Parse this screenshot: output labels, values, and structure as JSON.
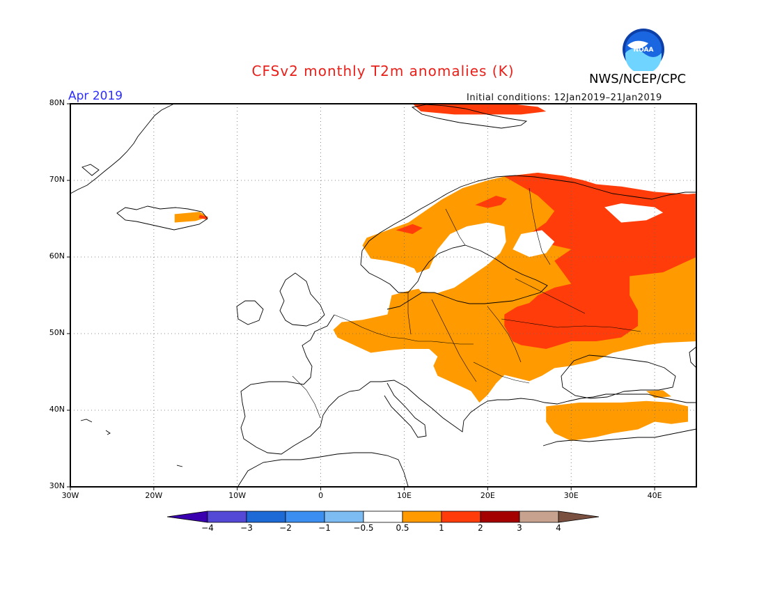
{
  "header": {
    "title": "CFSv2 monthly T2m anomalies (K)",
    "org": "NWS/NCEP/CPC",
    "logo_text": "NOAA",
    "month": "Apr 2019",
    "initial_conditions": "Initial conditions: 12Jan2019–21Jan2019"
  },
  "map": {
    "lon_range": [
      -30,
      45
    ],
    "lat_range": [
      30,
      80
    ],
    "lat_ticks": [
      {
        "value": 80,
        "label": "80N"
      },
      {
        "value": 70,
        "label": "70N"
      },
      {
        "value": 60,
        "label": "60N"
      },
      {
        "value": 50,
        "label": "50N"
      },
      {
        "value": 40,
        "label": "40N"
      },
      {
        "value": 30,
        "label": "30N"
      }
    ],
    "lon_ticks": [
      {
        "value": -30,
        "label": "30W"
      },
      {
        "value": -20,
        "label": "20W"
      },
      {
        "value": -10,
        "label": "10W"
      },
      {
        "value": 0,
        "label": "0"
      },
      {
        "value": 10,
        "label": "10E"
      },
      {
        "value": 20,
        "label": "20E"
      },
      {
        "value": 30,
        "label": "30E"
      },
      {
        "value": 40,
        "label": "40E"
      }
    ],
    "gridlines": true,
    "coastline_color": "#000000",
    "anomaly_regions": [
      {
        "level": "1-2",
        "color": "#ff3c0a",
        "lonlat": [
          [
            11,
            80
          ],
          [
            14,
            80.2
          ],
          [
            18,
            80.3
          ],
          [
            22,
            80.1
          ],
          [
            26,
            79.6
          ],
          [
            27,
            79
          ],
          [
            24,
            78.6
          ],
          [
            20,
            78.6
          ],
          [
            16,
            78.6
          ],
          [
            12,
            79
          ]
        ]
      },
      {
        "level": "0.5-1",
        "color": "#ff9a00",
        "lonlat": [
          [
            -17.5,
            64.5
          ],
          [
            -15,
            64.7
          ],
          [
            -13.5,
            65.2
          ],
          [
            -14.5,
            65.9
          ],
          [
            -17.5,
            65.6
          ]
        ]
      },
      {
        "level": "1-2",
        "color": "#ff3c0a",
        "lonlat": [
          [
            -14.5,
            65.5
          ],
          [
            -13.5,
            65.2
          ],
          [
            -13.7,
            64.9
          ],
          [
            -14.6,
            65.1
          ]
        ]
      },
      {
        "level": "0.5-1",
        "color": "#ff9a00",
        "lonlat": [
          [
            2.5,
            51.5
          ],
          [
            5,
            51.8
          ],
          [
            8,
            52.5
          ],
          [
            8.5,
            55
          ],
          [
            11,
            55.7
          ],
          [
            12.5,
            56
          ],
          [
            11.2,
            58.5
          ],
          [
            10,
            59
          ],
          [
            8,
            59.5
          ],
          [
            6,
            59.8
          ],
          [
            5,
            61.5
          ],
          [
            5.5,
            62.5
          ],
          [
            8,
            63.5
          ],
          [
            10.5,
            64.5
          ],
          [
            12.5,
            66
          ],
          [
            14.5,
            67.5
          ],
          [
            17,
            69
          ],
          [
            20,
            70
          ],
          [
            22,
            70.5
          ],
          [
            26,
            71
          ],
          [
            29,
            70.6
          ],
          [
            31.5,
            70
          ],
          [
            29,
            69.2
          ],
          [
            28.5,
            68
          ],
          [
            30,
            66.5
          ],
          [
            30,
            64.5
          ],
          [
            31.5,
            62.5
          ],
          [
            32,
            61
          ],
          [
            34,
            60.5
          ],
          [
            37,
            60
          ],
          [
            41,
            59.5
          ],
          [
            45,
            60
          ],
          [
            45,
            49
          ],
          [
            41,
            48.8
          ],
          [
            39,
            48.5
          ],
          [
            37,
            48
          ],
          [
            35,
            47.5
          ],
          [
            33,
            46.5
          ],
          [
            30,
            45.8
          ],
          [
            28,
            45.5
          ],
          [
            26.5,
            44.5
          ],
          [
            25,
            43.8
          ],
          [
            23.5,
            44.2
          ],
          [
            22,
            44.6
          ],
          [
            21,
            43.5
          ],
          [
            20,
            42
          ],
          [
            19,
            41
          ],
          [
            18,
            42.5
          ],
          [
            16,
            43.5
          ],
          [
            14,
            44.5
          ],
          [
            13.5,
            45.8
          ],
          [
            14,
            47
          ],
          [
            13,
            48
          ],
          [
            10,
            48
          ],
          [
            8,
            47.8
          ],
          [
            6,
            47.5
          ],
          [
            4,
            48.5
          ],
          [
            2,
            49.5
          ],
          [
            1.5,
            50.5
          ]
        ]
      },
      {
        "level": "0.5-1",
        "color": "#ff9a00",
        "lonlat": [
          [
            27,
            40.5
          ],
          [
            31,
            41
          ],
          [
            36,
            41
          ],
          [
            39,
            41.2
          ],
          [
            42,
            41
          ],
          [
            44,
            40.5
          ],
          [
            44,
            38.5
          ],
          [
            42,
            38.2
          ],
          [
            40,
            38.5
          ],
          [
            38,
            37.5
          ],
          [
            35,
            37
          ],
          [
            33,
            36.5
          ],
          [
            30,
            36
          ],
          [
            28,
            37
          ],
          [
            27,
            38.5
          ]
        ]
      },
      {
        "level": "0.5-1",
        "color": "#ff9a00",
        "lonlat": [
          [
            39,
            42.5
          ],
          [
            41,
            42.6
          ],
          [
            42,
            41.8
          ],
          [
            40,
            41.6
          ]
        ]
      },
      {
        "level": "1-2",
        "color": "#ff3c0a",
        "lonlat": [
          [
            22,
            70.5
          ],
          [
            26,
            71
          ],
          [
            29,
            70.6
          ],
          [
            31.5,
            70
          ],
          [
            33,
            69.5
          ],
          [
            36,
            69.2
          ],
          [
            40,
            68.5
          ],
          [
            44,
            68.2
          ],
          [
            45,
            68.3
          ],
          [
            45,
            60
          ],
          [
            41,
            58
          ],
          [
            37,
            57.5
          ],
          [
            37,
            55
          ],
          [
            38,
            53
          ],
          [
            38,
            51
          ],
          [
            36,
            49.5
          ],
          [
            33,
            49
          ],
          [
            30,
            49
          ],
          [
            27,
            48
          ],
          [
            24,
            48.5
          ],
          [
            23,
            49
          ],
          [
            22,
            51
          ],
          [
            22,
            52.5
          ],
          [
            23.5,
            53.5
          ],
          [
            25,
            54
          ],
          [
            26,
            55
          ],
          [
            28,
            56
          ],
          [
            30,
            56.5
          ],
          [
            29,
            58
          ],
          [
            28,
            59.5
          ],
          [
            30,
            61
          ],
          [
            26,
            62
          ],
          [
            25,
            63
          ],
          [
            27,
            64.5
          ],
          [
            28,
            66
          ],
          [
            26,
            68
          ]
        ]
      },
      {
        "level": "1-2",
        "color": "#ff3c0a",
        "lonlat": [
          [
            18.5,
            66.8
          ],
          [
            20,
            67.5
          ],
          [
            21,
            68
          ],
          [
            22.3,
            67.6
          ],
          [
            21.6,
            66.8
          ],
          [
            20,
            66.4
          ]
        ]
      },
      {
        "level": "1-2",
        "color": "#ff3c0a",
        "lonlat": [
          [
            9,
            63.5
          ],
          [
            11,
            64.3
          ],
          [
            12.2,
            63.8
          ],
          [
            11,
            63
          ]
        ]
      }
    ],
    "white_holes": [
      {
        "color": "#ffffff",
        "lonlat": [
          [
            34,
            66.5
          ],
          [
            36,
            67
          ],
          [
            40,
            66.5
          ],
          [
            41,
            65.8
          ],
          [
            39,
            64.8
          ],
          [
            36,
            64.5
          ]
        ]
      },
      {
        "color": "#ffffff",
        "lonlat": [
          [
            10.5,
            57.5
          ],
          [
            13,
            58.5
          ],
          [
            14,
            61
          ],
          [
            15.5,
            63
          ],
          [
            17.5,
            64
          ],
          [
            20,
            64.5
          ],
          [
            22,
            64
          ],
          [
            22.2,
            62
          ],
          [
            21.5,
            60.5
          ],
          [
            20,
            59
          ],
          [
            18,
            57.5
          ],
          [
            16,
            56
          ],
          [
            14,
            55.3
          ],
          [
            12,
            55.5
          ]
        ]
      },
      {
        "color": "#ffffff",
        "lonlat": [
          [
            23,
            61
          ],
          [
            25,
            60
          ],
          [
            27,
            60.5
          ],
          [
            28,
            62
          ],
          [
            26.5,
            63.5
          ],
          [
            24,
            63
          ]
        ]
      },
      {
        "color": "#ffffff",
        "lonlat": [
          [
            -9,
            54
          ],
          [
            -6,
            58.5
          ],
          [
            -2,
            58.5
          ],
          [
            1.7,
            52.5
          ],
          [
            1,
            50.5
          ],
          [
            -5,
            50
          ],
          [
            -9,
            51.5
          ]
        ]
      }
    ],
    "colorbar": {
      "bins": [
        {
          "color": "#3a00b0"
        },
        {
          "color": "#5448d6"
        },
        {
          "color": "#1d69d6"
        },
        {
          "color": "#3c8ff0"
        },
        {
          "color": "#7cbcf2"
        },
        {
          "color": "#ffffff"
        },
        {
          "color": "#ff9a00"
        },
        {
          "color": "#ff3c0a"
        },
        {
          "color": "#a40000"
        },
        {
          "color": "#c7a28e"
        },
        {
          "color": "#7a5040"
        }
      ],
      "ticks": [
        "−4",
        "−3",
        "−2",
        "−1",
        "−0.5",
        "0.5",
        "1",
        "2",
        "3",
        "4"
      ]
    }
  }
}
